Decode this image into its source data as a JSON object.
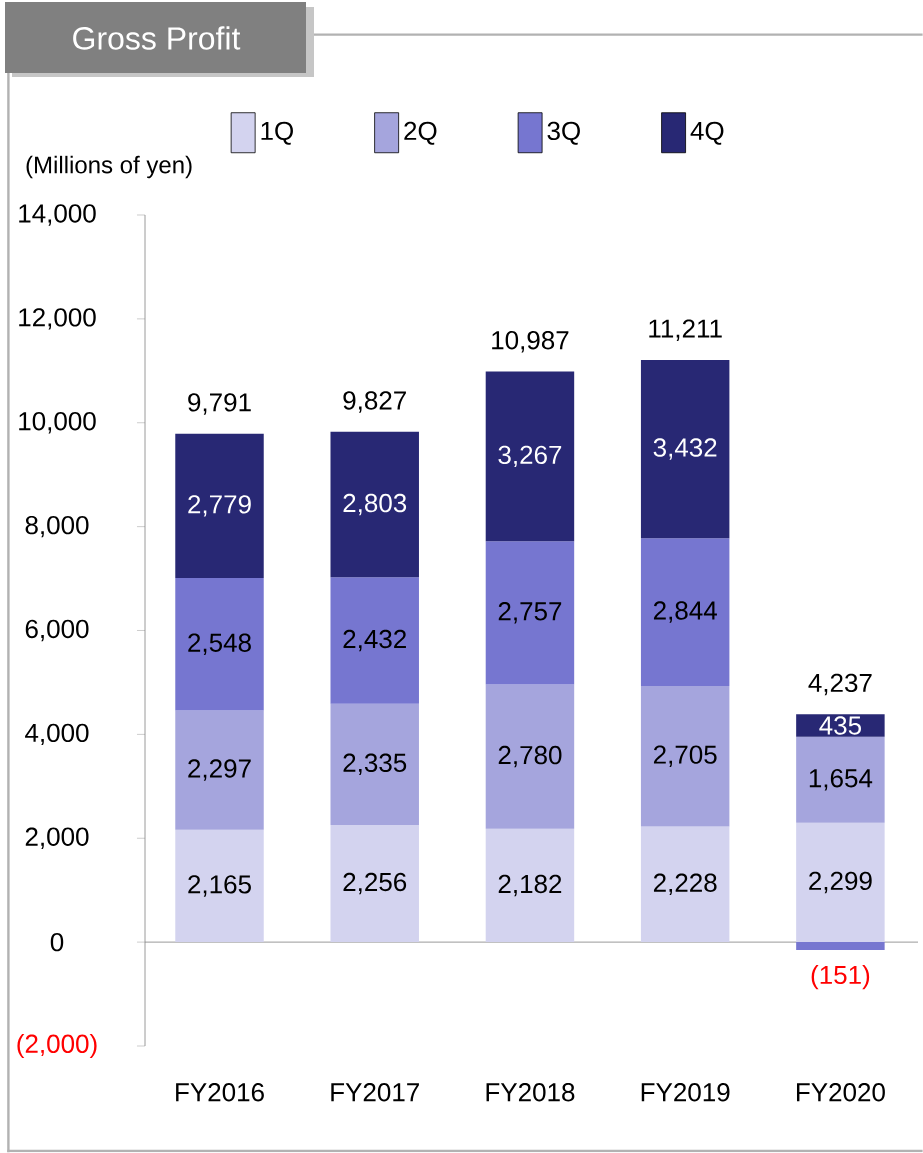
{
  "chart_data": {
    "type": "bar",
    "title": "Gross Profit",
    "ylabel": "(Millions of yen)",
    "categories": [
      "FY2016",
      "FY2017",
      "FY2018",
      "FY2019",
      "FY2020"
    ],
    "stacked": true,
    "legend": "top",
    "series": [
      {
        "name": "1Q",
        "color": "#d3d3ef",
        "values": [
          2165,
          2256,
          2182,
          2228,
          2299
        ],
        "value_labels": [
          "2,165",
          "2,256",
          "2,182",
          "2,228",
          "2,299"
        ]
      },
      {
        "name": "2Q",
        "color": "#a5a5dd",
        "values": [
          2297,
          2335,
          2780,
          2705,
          1654
        ],
        "value_labels": [
          "2,297",
          "2,335",
          "2,780",
          "2,705",
          "1,654"
        ]
      },
      {
        "name": "3Q",
        "color": "#7676d0",
        "values": [
          2548,
          2432,
          2757,
          2844,
          -151
        ],
        "value_labels": [
          "2,548",
          "2,432",
          "2,757",
          "2,844",
          "(151)"
        ]
      },
      {
        "name": "4Q",
        "color": "#282874",
        "values": [
          2779,
          2803,
          3267,
          3432,
          435
        ],
        "value_labels": [
          "2,779",
          "2,803",
          "3,267",
          "3,432",
          "435"
        ]
      }
    ],
    "totals": [
      "9,791",
      "9,827",
      "10,987",
      "11,211",
      "4,237"
    ],
    "ylim": [
      -2000,
      14000
    ],
    "yticks": [
      {
        "value": -2000,
        "label": "(2,000)"
      },
      0,
      {
        "value": 2000,
        "label": "2,000"
      },
      {
        "value": 4000,
        "label": "4,000"
      },
      {
        "value": 6000,
        "label": "6,000"
      },
      {
        "value": 8000,
        "label": "8,000"
      },
      {
        "value": 10000,
        "label": "10,000"
      },
      {
        "value": 12000,
        "label": "12,000"
      },
      {
        "value": 14000,
        "label": "14,000"
      }
    ]
  }
}
